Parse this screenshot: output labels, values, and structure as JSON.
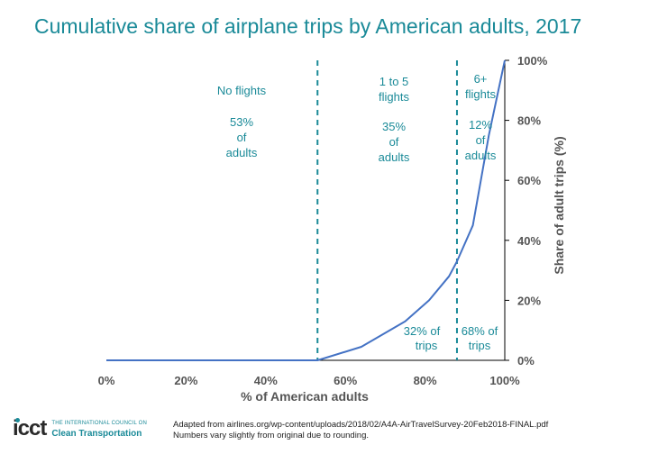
{
  "title": "Cumulative share of airplane trips by American adults, 2017",
  "chart_data": {
    "type": "line",
    "title": "Cumulative share of airplane trips by American adults, 2017",
    "xlabel": "% of American adults",
    "ylabel": "Share of adult trips (%)",
    "xlim": [
      0,
      100
    ],
    "ylim": [
      0,
      100
    ],
    "x_ticks": [
      "0%",
      "20%",
      "40%",
      "60%",
      "80%",
      "100%"
    ],
    "y_ticks": [
      "0%",
      "20%",
      "40%",
      "60%",
      "80%",
      "100%"
    ],
    "x": [
      0,
      53,
      64,
      75,
      81,
      86,
      88,
      92,
      96,
      100
    ],
    "y": [
      0,
      0,
      4.5,
      13,
      20,
      28,
      33,
      45,
      75,
      100
    ],
    "line_color": "#4472c4",
    "accent_color": "#1a8a98",
    "dividers": [
      53,
      88
    ],
    "segments": [
      {
        "name": "No flights",
        "share": "53%",
        "of": "of",
        "who": "adults"
      },
      {
        "name_lines": [
          "1 to 5",
          "flights"
        ],
        "share": "35%",
        "of": "of",
        "who": "adults"
      },
      {
        "name_lines": [
          "6+",
          "flights"
        ],
        "share": "12%",
        "of": "of",
        "who": "adults"
      }
    ],
    "trip_labels": [
      {
        "share": "32% of",
        "word": "trips"
      },
      {
        "share": "68% of",
        "word": "trips"
      }
    ]
  },
  "logo": {
    "mark": "icct",
    "org_line": "THE INTERNATIONAL COUNCIL ON",
    "org_name": "Clean Transportation"
  },
  "source": {
    "line1": "Adapted from airlines.org/wp-content/uploads/2018/02/A4A-AirTravelSurvey-20Feb2018-FINAL.pdf",
    "line2": "Numbers vary slightly from original due to rounding."
  }
}
